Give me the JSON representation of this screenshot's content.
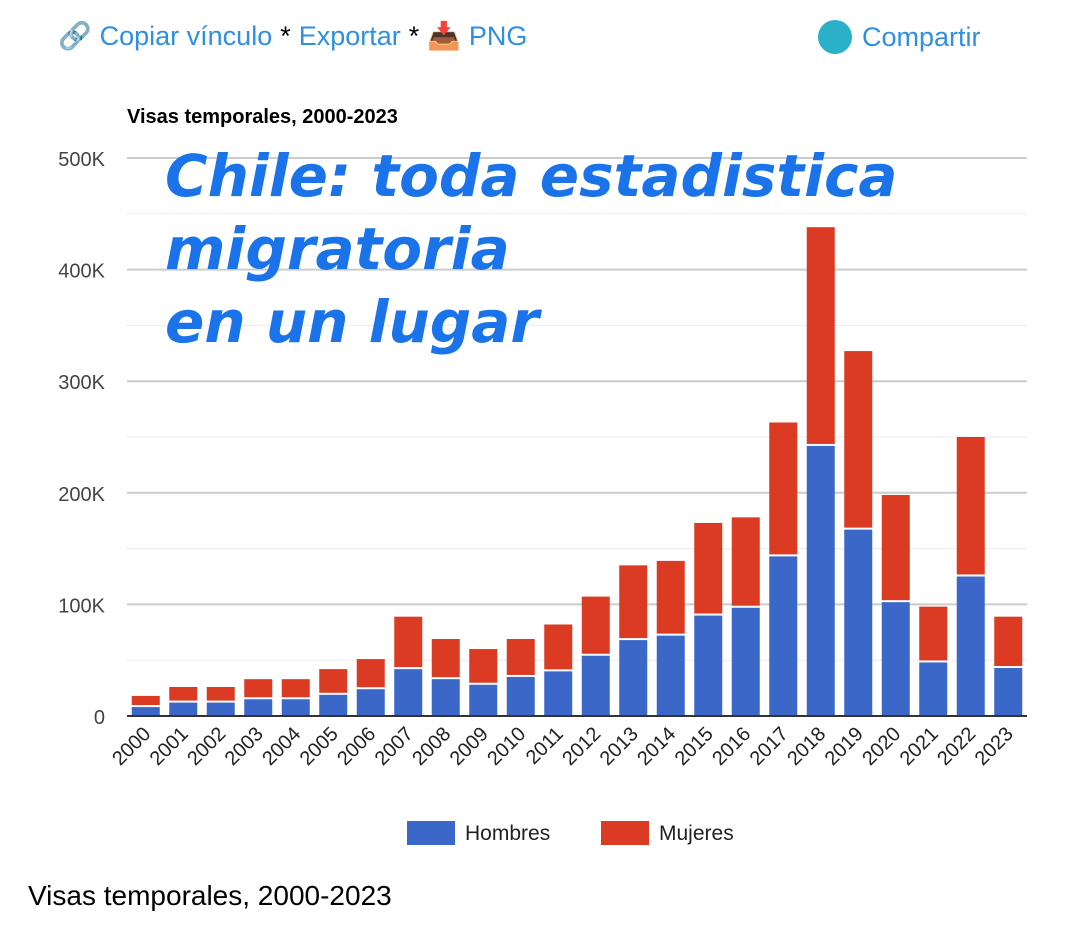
{
  "toolbar": {
    "copy_link": "Copiar vínculo",
    "sep": "*",
    "export": "Exportar",
    "png": "PNG",
    "share": "Compartir"
  },
  "overlay": {
    "line1": "Chile: toda estadistica",
    "line2": "migratoria",
    "line3": "en un lugar"
  },
  "caption": "Visas temporales, 2000-2023",
  "chart_data": {
    "type": "bar",
    "stacked": true,
    "title": "Visas temporales, 2000-2023",
    "categories": [
      "2000",
      "2001",
      "2002",
      "2003",
      "2004",
      "2005",
      "2006",
      "2007",
      "2008",
      "2009",
      "2010",
      "2011",
      "2012",
      "2013",
      "2014",
      "2015",
      "2016",
      "2017",
      "2018",
      "2019",
      "2020",
      "2021",
      "2022",
      "2023"
    ],
    "series": [
      {
        "name": "Hombres",
        "color": "#3a67c8",
        "values": [
          8000,
          12000,
          12000,
          15000,
          15000,
          19000,
          24000,
          42000,
          33000,
          28000,
          35000,
          40000,
          54000,
          68000,
          72000,
          90000,
          97000,
          143000,
          242000,
          167000,
          102000,
          48000,
          125000,
          43000
        ]
      },
      {
        "name": "Mujeres",
        "color": "#da3b22",
        "values": [
          10000,
          14000,
          14000,
          18000,
          18000,
          23000,
          27000,
          47000,
          36000,
          32000,
          34000,
          42000,
          53000,
          67000,
          67000,
          83000,
          81000,
          120000,
          196000,
          160000,
          96000,
          50000,
          125000,
          46000
        ]
      }
    ],
    "yticks": [
      "0",
      "100K",
      "200K",
      "300K",
      "400K",
      "500K"
    ],
    "ylim": [
      0,
      500000
    ],
    "grid": true,
    "legend": "bottom"
  }
}
